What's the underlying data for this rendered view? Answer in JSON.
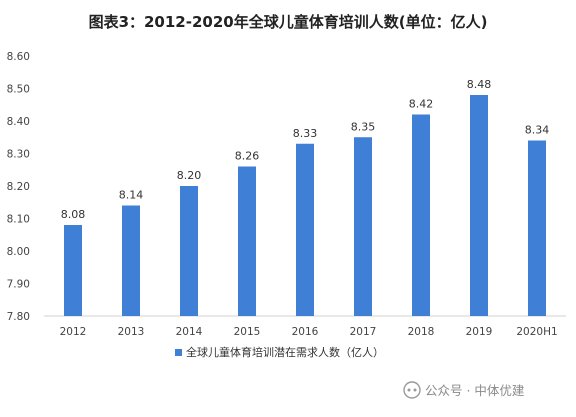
{
  "chart_data": {
    "type": "bar",
    "title": "图表3：2012-2020年全球儿童体育培训人数(单位：亿人)",
    "categories": [
      "2012",
      "2013",
      "2014",
      "2015",
      "2016",
      "2017",
      "2018",
      "2019",
      "2020H1"
    ],
    "series": [
      {
        "name": "全球儿童体育培训潜在需求人数（亿人）",
        "values": [
          8.08,
          8.14,
          8.2,
          8.26,
          8.33,
          8.35,
          8.42,
          8.48,
          8.34
        ],
        "value_labels": [
          "8.08",
          "8.14",
          "8.20",
          "8.26",
          "8.33",
          "8.35",
          "8.42",
          "8.48",
          "8.34"
        ]
      }
    ],
    "ylim": [
      7.8,
      8.6
    ],
    "y_ticks": [
      "7.80",
      "7.90",
      "8.00",
      "8.10",
      "8.20",
      "8.30",
      "8.40",
      "8.50",
      "8.60"
    ],
    "grid": false,
    "legend_position": "bottom",
    "bar_color": "#3f7fd6"
  },
  "watermark": {
    "text": "公众号 · 中体优建",
    "icon": "wechat-official-account-icon"
  }
}
